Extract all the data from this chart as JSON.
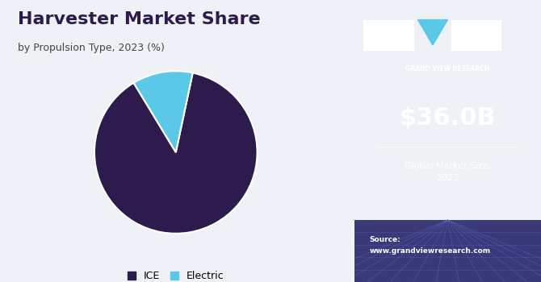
{
  "title": "Harvester Market Share",
  "subtitle": "by Propulsion Type, 2023 (%)",
  "pie_values": [
    88,
    12
  ],
  "pie_labels": [
    "ICE",
    "Electric"
  ],
  "pie_colors": [
    "#2d1b4e",
    "#5bc8e8"
  ],
  "pie_startangle": 78,
  "left_bg": "#eef2f7",
  "right_bg": "#3b1a5a",
  "market_size_label": "$36.0B",
  "market_size_sublabel": "Global Market Size,\n2023",
  "source_text": "Source:\nwww.grandviewresearch.com",
  "gvr_label": "GRAND VIEW RESEARCH",
  "title_color": "#2d1b4e",
  "subtitle_color": "#444444",
  "legend_ice_color": "#2d1b4e",
  "legend_electric_color": "#5bc8e8"
}
